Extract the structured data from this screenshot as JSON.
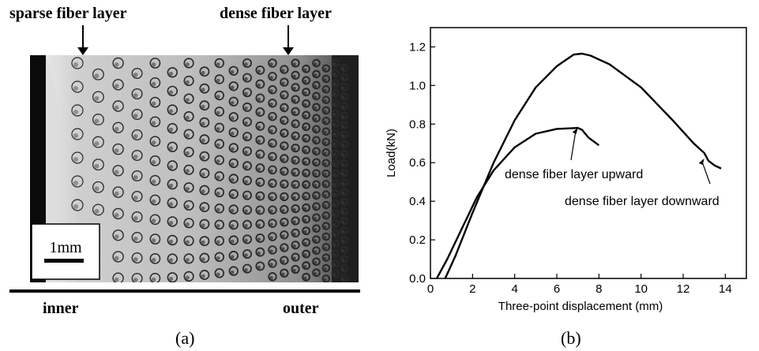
{
  "panel_a": {
    "label_sparse": "sparse fiber layer",
    "label_dense": "dense fiber layer",
    "scale_bar": "1mm",
    "label_inner": "inner",
    "label_outer": "outer",
    "caption": "(a)"
  },
  "panel_b": {
    "caption": "(b)"
  },
  "chart_data": {
    "type": "line",
    "xlabel": "Three-point displacement (mm)",
    "ylabel": "Load(kN)",
    "xlim": [
      0,
      15
    ],
    "ylim": [
      0,
      1.3
    ],
    "xticks": [
      0,
      2,
      4,
      6,
      8,
      10,
      12,
      14
    ],
    "yticks": [
      0.0,
      0.2,
      0.4,
      0.6,
      0.8,
      1.0,
      1.2
    ],
    "xtick_labels": [
      "0",
      "2",
      "4",
      "6",
      "8",
      "10",
      "12",
      "14"
    ],
    "ytick_labels": [
      "0.0",
      "0.2",
      "0.4",
      "0.6",
      "0.8",
      "1.0",
      "1.2"
    ],
    "grid": false,
    "series": [
      {
        "name": "dense fiber layer upward",
        "x": [
          0.3,
          0.8,
          1.5,
          2.2,
          3.0,
          4.0,
          5.0,
          6.0,
          7.0,
          7.2,
          7.5,
          8.0
        ],
        "y": [
          0.0,
          0.1,
          0.26,
          0.42,
          0.56,
          0.68,
          0.75,
          0.775,
          0.78,
          0.77,
          0.73,
          0.69
        ]
      },
      {
        "name": "dense fiber layer downward",
        "x": [
          0.7,
          1.2,
          2.0,
          3.0,
          4.0,
          5.0,
          6.0,
          6.8,
          7.2,
          7.6,
          8.5,
          10.0,
          11.5,
          12.5,
          13.0,
          13.2,
          13.5,
          13.8
        ],
        "y": [
          0.0,
          0.12,
          0.34,
          0.6,
          0.82,
          0.99,
          1.1,
          1.16,
          1.165,
          1.155,
          1.11,
          0.99,
          0.82,
          0.7,
          0.65,
          0.61,
          0.585,
          0.57
        ]
      }
    ],
    "annotations": [
      {
        "text": "dense fiber layer upward",
        "x": 7.0,
        "y": 0.79
      },
      {
        "text": "dense fiber layer downward",
        "x": 13.0,
        "y": 0.63
      }
    ]
  }
}
